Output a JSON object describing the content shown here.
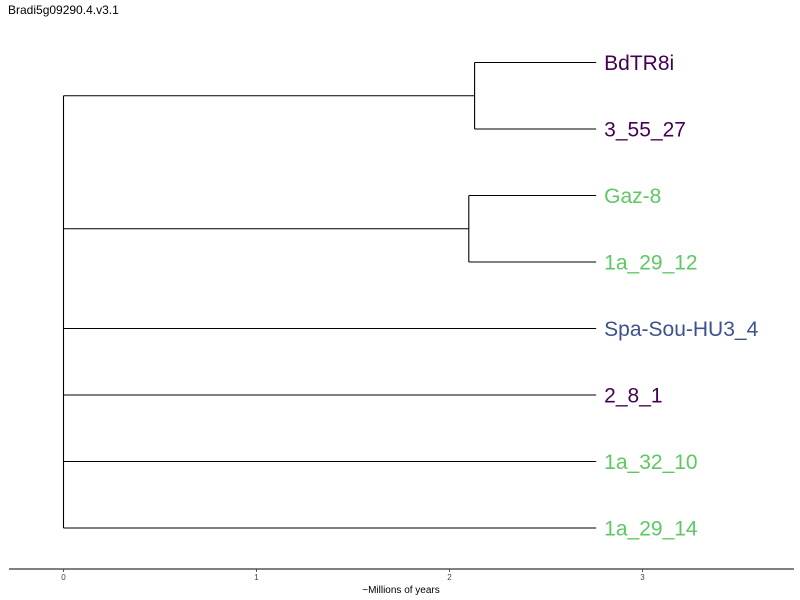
{
  "title": "Bradi5g09290.4.v3.1",
  "chart_data": {
    "type": "dendrogram",
    "xlabel": "~Millions of years",
    "xticks": [
      0,
      1,
      2,
      3
    ],
    "xlim": [
      -0.28,
      3.8
    ],
    "leaves": [
      {
        "name": "BdTR8i",
        "color": "#440154"
      },
      {
        "name": "3_55_27",
        "color": "#440154"
      },
      {
        "name": "Gaz-8",
        "color": "#5DC863"
      },
      {
        "name": "1a_29_12",
        "color": "#5DC863"
      },
      {
        "name": "Spa-Sou-HU3_4",
        "color": "#3B528B"
      },
      {
        "name": "2_8_1",
        "color": "#440154"
      },
      {
        "name": "1a_32_10",
        "color": "#5DC863"
      },
      {
        "name": "1a_29_14",
        "color": "#5DC863"
      }
    ],
    "tip_depth": 2.76,
    "internal_nodes": [
      {
        "children": [
          0,
          1
        ],
        "height": 2.13
      },
      {
        "children": [
          2,
          3
        ],
        "height": 2.1
      }
    ],
    "root_height": 0.0
  }
}
